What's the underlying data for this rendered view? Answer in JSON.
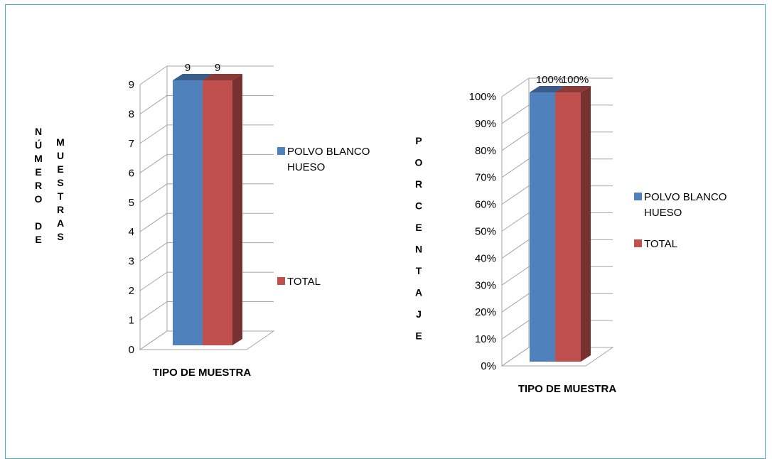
{
  "chart_data": [
    {
      "type": "bar",
      "categories": [
        "TIPO DE MUESTRA"
      ],
      "series": [
        {
          "name": "POLVO  BLANCO HUESO",
          "values": [
            9
          ],
          "color": "#4f81bd",
          "label": "9"
        },
        {
          "name": "TOTAL",
          "values": [
            9
          ],
          "color": "#c0504d",
          "label": "9"
        }
      ],
      "xlabel": "TIPO DE MUESTRA",
      "ylabel_col1": [
        "N",
        "Ú",
        "M",
        "E",
        "R",
        "O",
        "",
        "D",
        "E"
      ],
      "ylabel_col2": [
        "M",
        "U",
        "E",
        "S",
        "T",
        "R",
        "A",
        "S"
      ],
      "ylim": [
        0,
        9
      ],
      "yticks": [
        "0",
        "1",
        "2",
        "3",
        "4",
        "5",
        "6",
        "7",
        "8",
        "9"
      ],
      "grid": true,
      "legend_position": "right",
      "legend": [
        [
          "POLVO  BLANCO",
          "HUESO"
        ],
        [
          "TOTAL"
        ]
      ]
    },
    {
      "type": "bar",
      "categories": [
        "TIPO DE MUESTRA"
      ],
      "series": [
        {
          "name": "POLVO  BLANCO HUESO",
          "values": [
            100
          ],
          "color": "#4f81bd",
          "label": "100%"
        },
        {
          "name": "TOTAL",
          "values": [
            100
          ],
          "color": "#c0504d",
          "label": "100%"
        }
      ],
      "xlabel": "TIPO DE MUESTRA",
      "ylabel_col1": [
        "P",
        "O",
        "R",
        "C",
        "E",
        "N",
        "T",
        "A",
        "J",
        "E"
      ],
      "ylim": [
        0,
        100
      ],
      "yticks": [
        "0%",
        "10%",
        "20%",
        "30%",
        "40%",
        "50%",
        "60%",
        "70%",
        "80%",
        "90%",
        "100%"
      ],
      "grid": true,
      "legend_position": "right",
      "legend": [
        [
          "POLVO  BLANCO",
          "HUESO"
        ],
        [
          "TOTAL"
        ]
      ]
    }
  ]
}
